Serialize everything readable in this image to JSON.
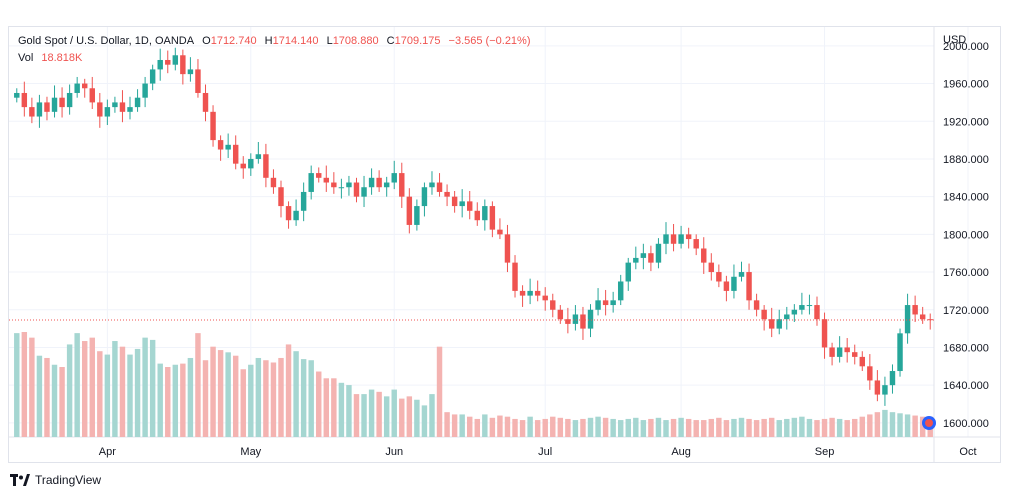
{
  "header": {
    "symbol": "Gold Spot / U.S. Dollar, 1D, OANDA",
    "open_label": "O",
    "open_value": "1712.740",
    "high_label": "H",
    "high_value": "1714.140",
    "low_label": "L",
    "low_value": "1708.880",
    "close_label": "C",
    "close_value": "1709.175",
    "change": "−3.565 (−0.21%)",
    "vol_label": "Vol",
    "vol_value": "18.818K"
  },
  "brand": {
    "name": "TradingView"
  },
  "colors": {
    "up": "#26a69a",
    "down": "#ef5350",
    "up_vol": "#a5d6d1",
    "down_vol": "#f4b3b1",
    "grid": "#f0f3fa",
    "axis_text": "#131722",
    "price_line": "#ef5350"
  },
  "chart_data": {
    "type": "candlestick",
    "currency": "USD",
    "y_ticks": [
      "2000.000",
      "1960.000",
      "1920.000",
      "1880.000",
      "1840.000",
      "1800.000",
      "1760.000",
      "1720.000",
      "1680.000",
      "1640.000",
      "1600.000"
    ],
    "ylim": [
      1585,
      2020
    ],
    "x_labels": [
      "Apr",
      "May",
      "Jun",
      "Jul",
      "Aug",
      "Sep",
      "Oct"
    ],
    "x_label_index": [
      12,
      31,
      50,
      70,
      88,
      107,
      126
    ],
    "last_price": 1709.175,
    "closes": [
      1950,
      1935,
      1925,
      1940,
      1930,
      1945,
      1935,
      1950,
      1960,
      1955,
      1940,
      1925,
      1935,
      1940,
      1930,
      1935,
      1945,
      1960,
      1975,
      1985,
      1980,
      1990,
      1970,
      1975,
      1950,
      1930,
      1900,
      1890,
      1895,
      1875,
      1870,
      1880,
      1885,
      1860,
      1850,
      1830,
      1815,
      1825,
      1845,
      1865,
      1860,
      1855,
      1850,
      1850,
      1855,
      1840,
      1850,
      1860,
      1850,
      1855,
      1865,
      1840,
      1810,
      1830,
      1850,
      1855,
      1845,
      1840,
      1830,
      1835,
      1825,
      1815,
      1830,
      1805,
      1800,
      1770,
      1740,
      1735,
      1740,
      1735,
      1730,
      1720,
      1710,
      1705,
      1715,
      1700,
      1720,
      1730,
      1725,
      1730,
      1750,
      1770,
      1775,
      1780,
      1770,
      1790,
      1800,
      1790,
      1800,
      1795,
      1785,
      1770,
      1760,
      1750,
      1740,
      1755,
      1760,
      1730,
      1720,
      1710,
      1700,
      1710,
      1715,
      1720,
      1725,
      1725,
      1710,
      1680,
      1670,
      1680,
      1675,
      1670,
      1660,
      1645,
      1630,
      1640,
      1655,
      1695,
      1725,
      1715,
      1710,
      1709
    ],
    "volumes": [
      92,
      93,
      88,
      72,
      70,
      64,
      62,
      82,
      92,
      85,
      88,
      76,
      73,
      85,
      80,
      73,
      78,
      88,
      86,
      65,
      62,
      64,
      65,
      70,
      92,
      68,
      80,
      77,
      75,
      72,
      60,
      64,
      70,
      68,
      66,
      70,
      82,
      76,
      69,
      68,
      58,
      52,
      52,
      48,
      46,
      38,
      38,
      42,
      40,
      36,
      42,
      34,
      36,
      33,
      28,
      38,
      80,
      22,
      20,
      20,
      18,
      16,
      20,
      17,
      19,
      18,
      16,
      15,
      18,
      15,
      16,
      18,
      17,
      16,
      15,
      16,
      17,
      18,
      17,
      16,
      15,
      16,
      17,
      15,
      16,
      17,
      15,
      16,
      17,
      16,
      15,
      15,
      16,
      17,
      15,
      16,
      17,
      16,
      15,
      16,
      17,
      15,
      16,
      17,
      18,
      16,
      15,
      16,
      17,
      16,
      15,
      16,
      18,
      20,
      22,
      24,
      22,
      21,
      20,
      19,
      18,
      18
    ]
  }
}
